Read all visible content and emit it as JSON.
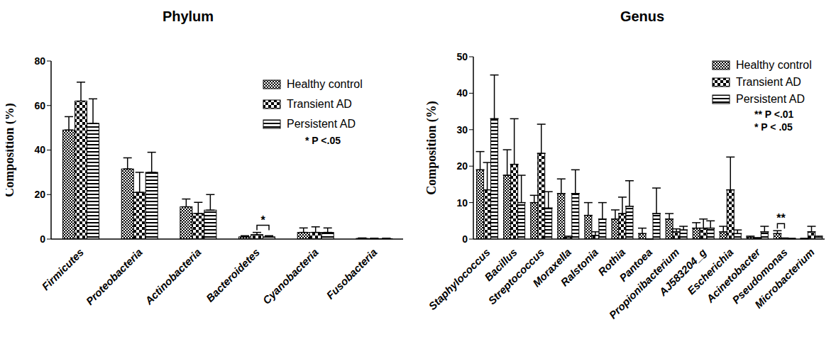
{
  "chart_data": [
    {
      "type": "bar",
      "title": "Phylum",
      "y_label": "Composition (%)",
      "categories": [
        "Firmicutes",
        "Proteobacteria",
        "Actinobacteria",
        "Bacteroidetes",
        "Cyanobacteria",
        "Fusobacteria"
      ],
      "series": [
        {
          "name": "Healthy control",
          "color": "#000000",
          "values": [
            49,
            31.5,
            14.5,
            1,
            3,
            0.3
          ],
          "errors": [
            6,
            5,
            3.5,
            0.5,
            2,
            0.2
          ]
        },
        {
          "name": "Transient AD",
          "color": "#000000",
          "values": [
            62,
            21,
            11.5,
            2,
            3,
            0.2
          ],
          "errors": [
            8.5,
            9,
            5,
            1,
            2.5,
            0.2
          ]
        },
        {
          "name": "Persistent AD",
          "color": "#000000",
          "values": [
            52,
            30,
            13,
            1,
            3,
            0.2
          ],
          "errors": [
            11,
            9,
            7,
            0.5,
            2,
            0.2
          ]
        }
      ],
      "ylim": [
        0,
        80
      ],
      "yticks": [
        0,
        20,
        40,
        60,
        80
      ],
      "legend": "top-right",
      "annotations": [
        "* P <.05"
      ],
      "significance": [
        {
          "category": "Bacteroidetes",
          "from": "Transient AD",
          "to": "Persistent AD",
          "label": "*"
        }
      ]
    },
    {
      "type": "bar",
      "title": "Genus",
      "y_label": "Composition (%)",
      "categories": [
        "Staphylococcus",
        "Bacillus",
        "Streptococcus",
        "Moraxella",
        "Ralstonia",
        "Rothia",
        "Pantoea",
        "Propionibacterium",
        "AJ583204_g",
        "Escherichia",
        "Acinetobacter",
        "Pseudomonas",
        "Microbacterium"
      ],
      "series": [
        {
          "name": "Healthy control",
          "color": "#000000",
          "values": [
            19,
            17.5,
            10,
            12.5,
            6.5,
            5.5,
            1.5,
            5.5,
            3,
            2,
            0.5,
            1.5,
            0.1
          ],
          "errors": [
            5,
            7,
            2,
            4,
            3.5,
            2.5,
            1.5,
            1.5,
            1.5,
            1.5,
            0.3,
            0.8,
            0.1
          ]
        },
        {
          "name": "Transient AD",
          "color": "#000000",
          "values": [
            13.5,
            20.5,
            23.5,
            0.5,
            1,
            7,
            0,
            2,
            3,
            13.5,
            0.2,
            0.2,
            2
          ],
          "errors": [
            7.5,
            12.5,
            8,
            0.3,
            1,
            4.5,
            0,
            0.8,
            2.5,
            9,
            0.2,
            0.1,
            1.5
          ]
        },
        {
          "name": "Persistent AD",
          "color": "#000000",
          "values": [
            33,
            10,
            8.5,
            12.5,
            5.5,
            9,
            7,
            2.5,
            3,
            1.5,
            2,
            0.1,
            0.5
          ],
          "errors": [
            12,
            7.5,
            4.5,
            6.5,
            4.5,
            7,
            7,
            1,
            2,
            1,
            1.5,
            0.1,
            0.3
          ]
        }
      ],
      "ylim": [
        0,
        50
      ],
      "yticks": [
        0,
        10,
        20,
        30,
        40,
        50
      ],
      "legend": "top-right",
      "annotations": [
        "** P <.01",
        "* P < .05"
      ],
      "significance": [
        {
          "category": "Pseudomonas",
          "from": "Healthy control",
          "to": "Transient AD",
          "label": "**"
        }
      ]
    }
  ]
}
